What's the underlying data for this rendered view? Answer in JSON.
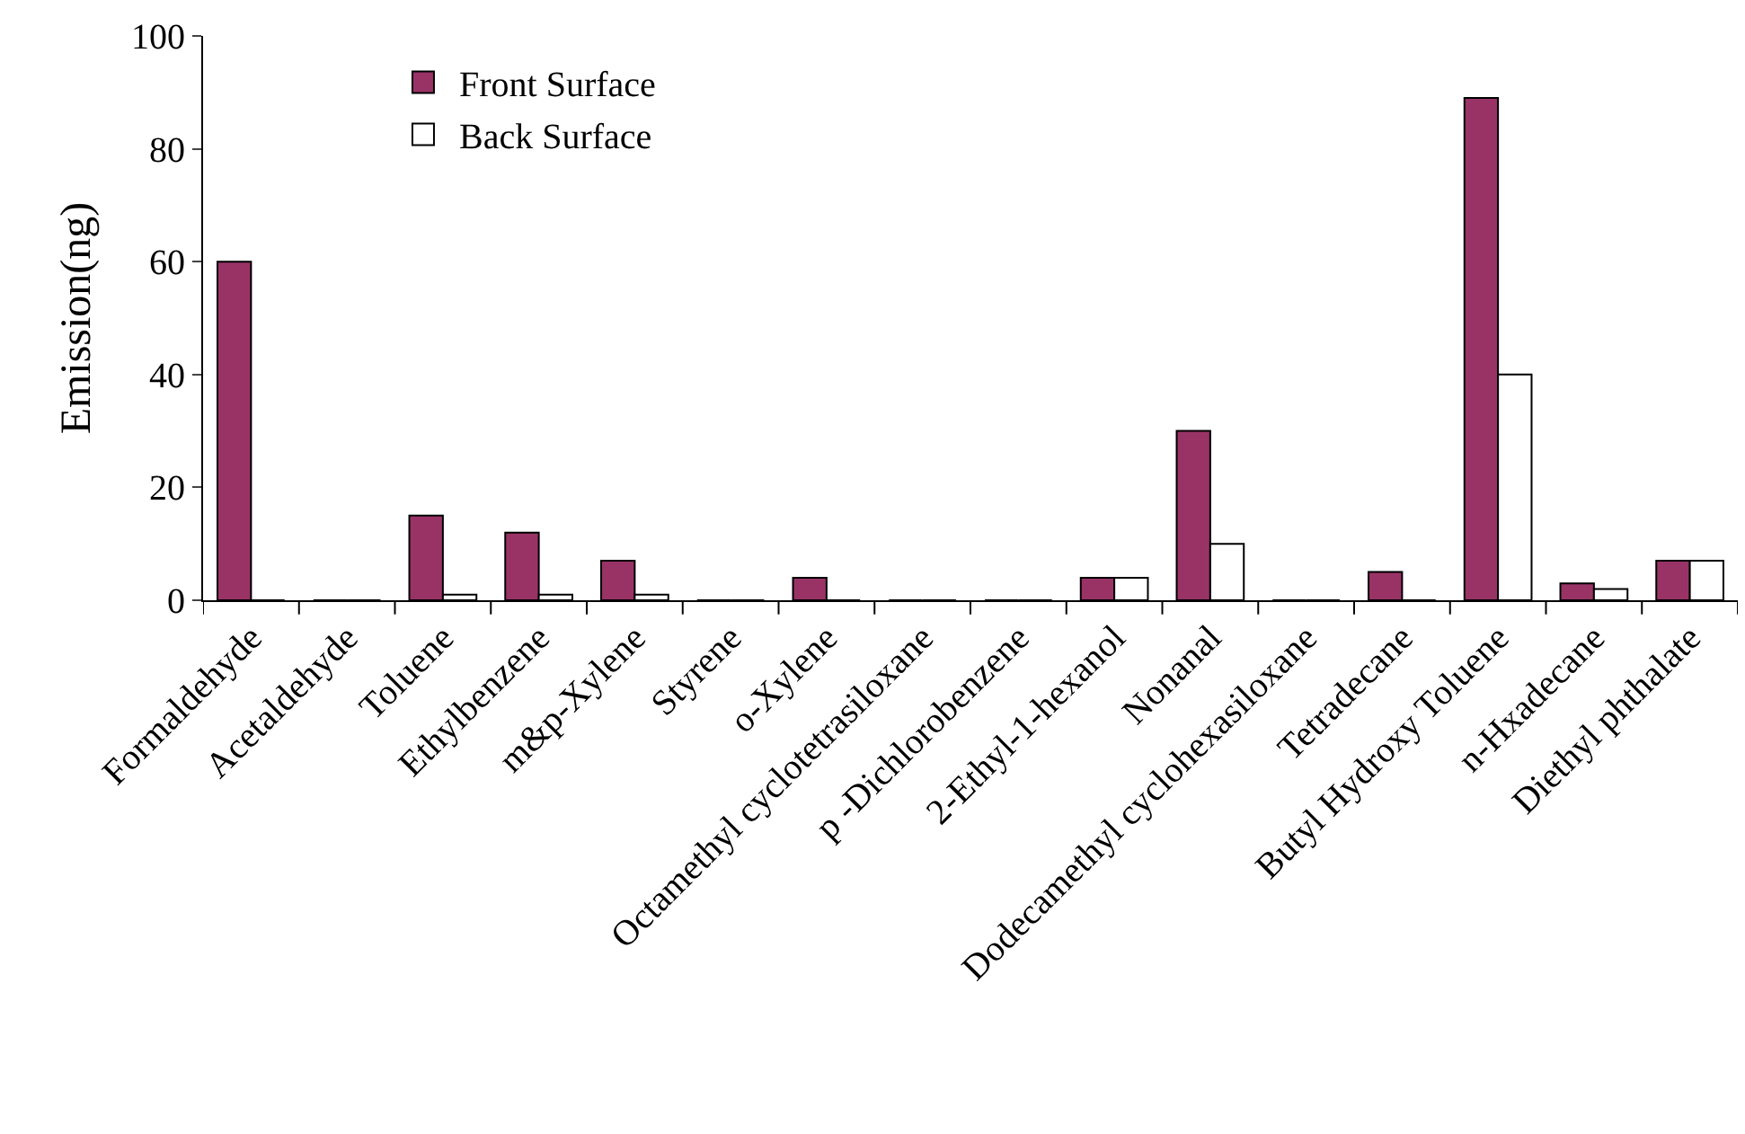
{
  "chart_data": {
    "type": "bar",
    "ylabel": "Emission(ng)",
    "categories": [
      "Formaldehyde",
      "Acetaldehyde",
      "Toluene",
      "Ethylbenzene",
      "m&p-Xylene",
      "Styrene",
      "o-Xylene",
      "Octamethyl cyclotetrasiloxane",
      "p -Dichlorobenzene",
      "2-Ethyl-1-hexanol",
      "Nonanal",
      "Dodecamethyl cyclohexasiloxane",
      "Tetradecane",
      "Butyl Hydroxy Toluene",
      "n-Hxadecane",
      "Diethyl phthalate"
    ],
    "series": [
      {
        "name": "Front Surface",
        "color": "#993366",
        "values": [
          60,
          0,
          15,
          12,
          7,
          0,
          4,
          0,
          0,
          4,
          30,
          0,
          5,
          89,
          3,
          7
        ]
      },
      {
        "name": "Back Surface",
        "color": "#ffffff",
        "values": [
          0,
          0,
          1,
          1,
          1,
          0,
          0,
          0,
          0,
          4,
          10,
          0,
          0,
          40,
          2,
          7
        ]
      }
    ],
    "ylim": [
      0,
      100
    ],
    "yticks": [
      0,
      20,
      40,
      60,
      80,
      100
    ],
    "legend": "top left"
  }
}
